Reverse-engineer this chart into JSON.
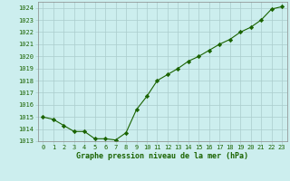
{
  "x": [
    0,
    1,
    2,
    3,
    4,
    5,
    6,
    7,
    8,
    9,
    10,
    11,
    12,
    13,
    14,
    15,
    16,
    17,
    18,
    19,
    20,
    21,
    22,
    23
  ],
  "y": [
    1015.0,
    1014.8,
    1014.3,
    1013.8,
    1013.8,
    1013.2,
    1013.2,
    1013.1,
    1013.7,
    1015.6,
    1016.7,
    1018.0,
    1018.5,
    1019.0,
    1019.6,
    1020.0,
    1020.5,
    1021.0,
    1021.4,
    1022.0,
    1022.4,
    1023.0,
    1023.9,
    1024.1
  ],
  "line_color": "#1a6300",
  "marker": "D",
  "marker_size": 2.2,
  "background_color": "#cceeee",
  "grid_color": "#aacccc",
  "xlabel": "Graphe pression niveau de la mer (hPa)",
  "xlabel_color": "#1a6300",
  "tick_color": "#1a6300",
  "ylim": [
    1013,
    1024.5
  ],
  "xlim": [
    -0.5,
    23.5
  ],
  "yticks": [
    1013,
    1014,
    1015,
    1016,
    1017,
    1018,
    1019,
    1020,
    1021,
    1022,
    1023,
    1024
  ],
  "xticks": [
    0,
    1,
    2,
    3,
    4,
    5,
    6,
    7,
    8,
    9,
    10,
    11,
    12,
    13,
    14,
    15,
    16,
    17,
    18,
    19,
    20,
    21,
    22,
    23
  ],
  "tick_fontsize": 5.0,
  "xlabel_fontsize": 6.0
}
